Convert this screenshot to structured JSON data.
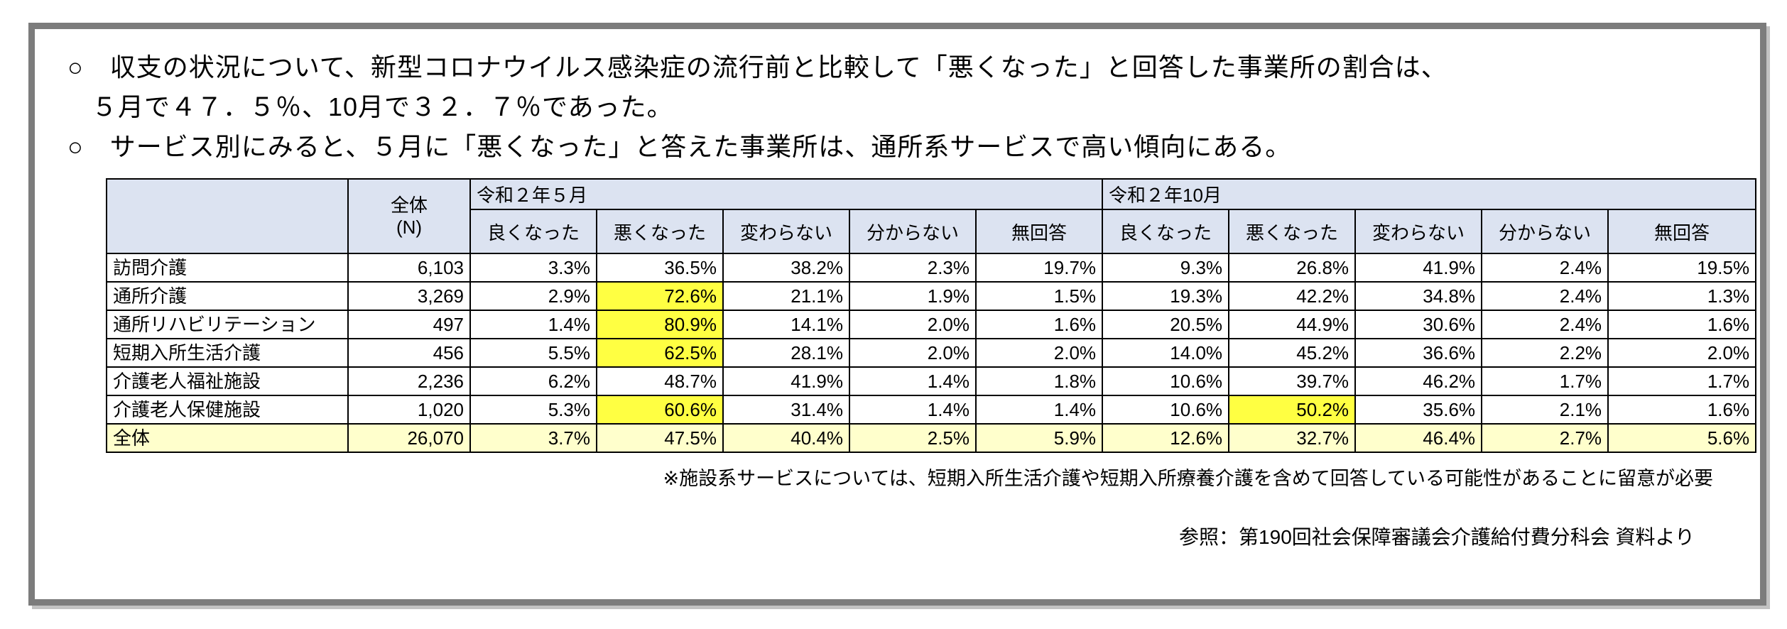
{
  "page": {
    "bullet1_line1": "○　収支の状況について、新型コロナウイルス感染症の流行前と比較して「悪くなった」と回答した事業所の割合は、",
    "bullet1_line2": "５月で４７．５％、10月で３２．７％であった。",
    "bullet2": "○　サービス別にみると、５月に「悪くなった」と答えた事業所は、通所系サービスで高い傾向にある。",
    "footnote": "※施設系サービスについては、短期入所生活介護や短期入所療養介護を含めて回答している可能性があることに留意が必要",
    "reference": "参照：第190回社会保障審議会介護給付費分科会 資料より"
  },
  "colors": {
    "header_bg": "#dce3f1",
    "highlight_yellow": "#ffff42",
    "total_row_bg": "#ffffcc",
    "frame_border": "#7c7c7c",
    "grid_line": "#000000"
  },
  "table": {
    "corner_label": "",
    "n_header_line1": "全体",
    "n_header_line2": "(N)",
    "groups": [
      {
        "label": "令和２年５月",
        "columns": [
          "良くなった",
          "悪くなった",
          "変わらない",
          "分からない",
          "無回答"
        ]
      },
      {
        "label": "令和２年10月",
        "columns": [
          "良くなった",
          "悪くなった",
          "変わらない",
          "分からない",
          "無回答"
        ]
      }
    ],
    "rows": [
      {
        "label": "訪問介護",
        "n": "6,103",
        "may": [
          "3.3%",
          "36.5%",
          "38.2%",
          "2.3%",
          "19.7%"
        ],
        "oct": [
          "9.3%",
          "26.8%",
          "41.9%",
          "2.4%",
          "19.5%"
        ],
        "may_hl": [],
        "oct_hl": [],
        "total": false
      },
      {
        "label": "通所介護",
        "n": "3,269",
        "may": [
          "2.9%",
          "72.6%",
          "21.1%",
          "1.9%",
          "1.5%"
        ],
        "oct": [
          "19.3%",
          "42.2%",
          "34.8%",
          "2.4%",
          "1.3%"
        ],
        "may_hl": [
          1
        ],
        "oct_hl": [],
        "total": false
      },
      {
        "label": "通所リハビリテーション",
        "n": "497",
        "may": [
          "1.4%",
          "80.9%",
          "14.1%",
          "2.0%",
          "1.6%"
        ],
        "oct": [
          "20.5%",
          "44.9%",
          "30.6%",
          "2.4%",
          "1.6%"
        ],
        "may_hl": [
          1
        ],
        "oct_hl": [],
        "total": false
      },
      {
        "label": "短期入所生活介護",
        "n": "456",
        "may": [
          "5.5%",
          "62.5%",
          "28.1%",
          "2.0%",
          "2.0%"
        ],
        "oct": [
          "14.0%",
          "45.2%",
          "36.6%",
          "2.2%",
          "2.0%"
        ],
        "may_hl": [
          1
        ],
        "oct_hl": [],
        "total": false
      },
      {
        "label": "介護老人福祉施設",
        "n": "2,236",
        "may": [
          "6.2%",
          "48.7%",
          "41.9%",
          "1.4%",
          "1.8%"
        ],
        "oct": [
          "10.6%",
          "39.7%",
          "46.2%",
          "1.7%",
          "1.7%"
        ],
        "may_hl": [],
        "oct_hl": [],
        "total": false
      },
      {
        "label": "介護老人保健施設",
        "n": "1,020",
        "may": [
          "5.3%",
          "60.6%",
          "31.4%",
          "1.4%",
          "1.4%"
        ],
        "oct": [
          "10.6%",
          "50.2%",
          "35.6%",
          "2.1%",
          "1.6%"
        ],
        "may_hl": [
          1
        ],
        "oct_hl": [
          1
        ],
        "total": false
      },
      {
        "label": "全体",
        "n": "26,070",
        "may": [
          "3.7%",
          "47.5%",
          "40.4%",
          "2.5%",
          "5.9%"
        ],
        "oct": [
          "12.6%",
          "32.7%",
          "46.4%",
          "2.7%",
          "5.6%"
        ],
        "may_hl": [],
        "oct_hl": [],
        "total": true
      }
    ]
  }
}
